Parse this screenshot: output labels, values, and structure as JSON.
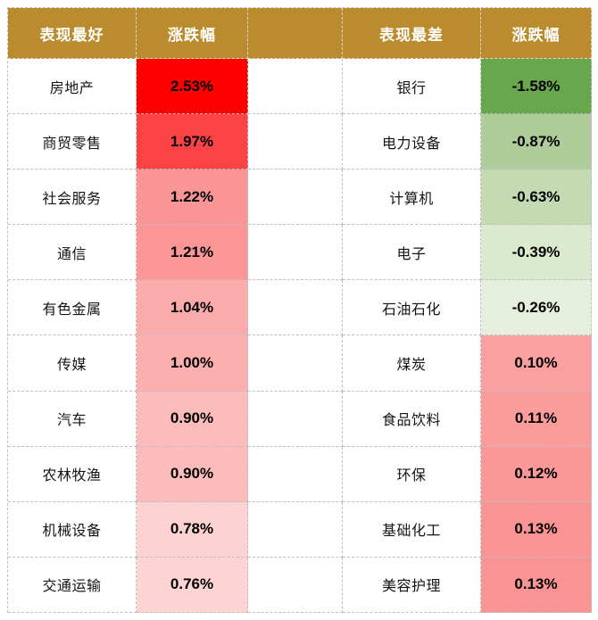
{
  "colors": {
    "header_bg": "#BA8C2E",
    "border": "#BFBFBF"
  },
  "best": {
    "title": "表现最好",
    "change_header": "涨跌幅",
    "rows": [
      {
        "name": "房地产",
        "value": "2.53%",
        "bg": "#FE0000"
      },
      {
        "name": "商贸零售",
        "value": "1.97%",
        "bg": "#FB4244"
      },
      {
        "name": "社会服务",
        "value": "1.22%",
        "bg": "#FA9595"
      },
      {
        "name": "通信",
        "value": "1.21%",
        "bg": "#FA9696"
      },
      {
        "name": "有色金属",
        "value": "1.04%",
        "bg": "#FBABAB"
      },
      {
        "name": "传媒",
        "value": "1.00%",
        "bg": "#FCAFAF"
      },
      {
        "name": "汽车",
        "value": "0.90%",
        "bg": "#FCBCBC"
      },
      {
        "name": "农林牧渔",
        "value": "0.90%",
        "bg": "#FCBCBC"
      },
      {
        "name": "机械设备",
        "value": "0.78%",
        "bg": "#FDD2D2"
      },
      {
        "name": "交通运输",
        "value": "0.76%",
        "bg": "#FDD4D4"
      }
    ]
  },
  "worst": {
    "title": "表现最差",
    "change_header": "涨跌幅",
    "rows": [
      {
        "name": "银行",
        "value": "-1.58%",
        "bg": "#69A74E"
      },
      {
        "name": "电力设备",
        "value": "-0.87%",
        "bg": "#AFCD9B"
      },
      {
        "name": "计算机",
        "value": "-0.63%",
        "bg": "#C3DAB2"
      },
      {
        "name": "电子",
        "value": "-0.39%",
        "bg": "#DBE9CE"
      },
      {
        "name": "石油石化",
        "value": "-0.26%",
        "bg": "#E5EFDC"
      },
      {
        "name": "煤炭",
        "value": "0.10%",
        "bg": "#FBA0A0"
      },
      {
        "name": "食品饮料",
        "value": "0.11%",
        "bg": "#FA9C9C"
      },
      {
        "name": "环保",
        "value": "0.12%",
        "bg": "#FA9898"
      },
      {
        "name": "基础化工",
        "value": "0.13%",
        "bg": "#F99494"
      },
      {
        "name": "美容护理",
        "value": "0.13%",
        "bg": "#F99494"
      }
    ]
  },
  "chart_data": [
    {
      "type": "table",
      "title": "表现最好",
      "columns": [
        "表现最好",
        "涨跌幅"
      ],
      "rows": [
        [
          "房地产",
          2.53
        ],
        [
          "商贸零售",
          1.97
        ],
        [
          "社会服务",
          1.22
        ],
        [
          "通信",
          1.21
        ],
        [
          "有色金属",
          1.04
        ],
        [
          "传媒",
          1.0
        ],
        [
          "汽车",
          0.9
        ],
        [
          "农林牧渔",
          0.9
        ],
        [
          "机械设备",
          0.78
        ],
        [
          "交通运输",
          0.76
        ]
      ],
      "value_unit": "%",
      "color_scale": "red gradient, darker = larger gain"
    },
    {
      "type": "table",
      "title": "表现最差",
      "columns": [
        "表现最差",
        "涨跌幅"
      ],
      "rows": [
        [
          "银行",
          -1.58
        ],
        [
          "电力设备",
          -0.87
        ],
        [
          "计算机",
          -0.63
        ],
        [
          "电子",
          -0.39
        ],
        [
          "石油石化",
          -0.26
        ],
        [
          "煤炭",
          0.1
        ],
        [
          "食品饮料",
          0.11
        ],
        [
          "环保",
          0.12
        ],
        [
          "基础化工",
          0.13
        ],
        [
          "美容护理",
          0.13
        ]
      ],
      "value_unit": "%",
      "color_scale": "green gradient for losses, pink for gains"
    }
  ]
}
